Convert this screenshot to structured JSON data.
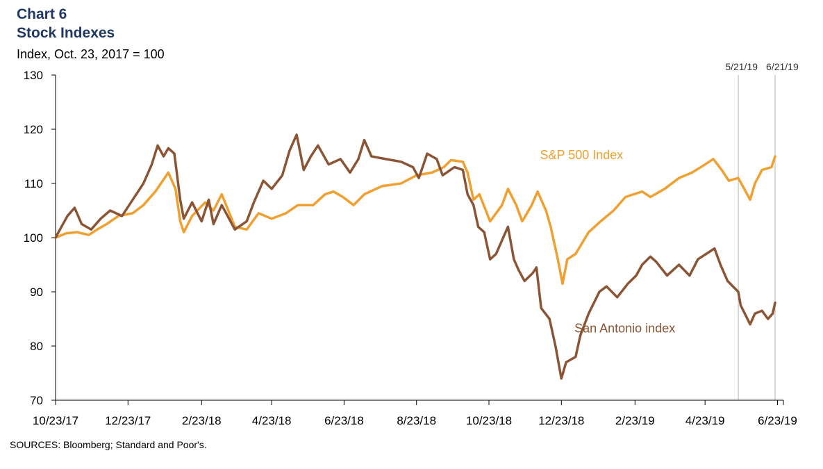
{
  "header": {
    "chart_label": "Chart 6",
    "title": "Stock Indexes",
    "unit_label": "Index, Oct. 23, 2017 = 100"
  },
  "footer": {
    "source": "SOURCES:  Bloomberg; Standard and Poor's."
  },
  "chart_data": {
    "type": "line",
    "title": "Stock Indexes",
    "ylabel": "Index, Oct. 23, 2017 = 100",
    "xlabel": "",
    "xlim": [
      "2017-10-23",
      "2019-06-28"
    ],
    "ylim": [
      70,
      130
    ],
    "y_ticks": [
      70,
      80,
      90,
      100,
      110,
      120,
      130
    ],
    "x_ticks": [
      {
        "date": "2017-10-23",
        "label": "10/23/17"
      },
      {
        "date": "2017-12-23",
        "label": "12/23/17"
      },
      {
        "date": "2018-02-23",
        "label": "2/23/18"
      },
      {
        "date": "2018-04-23",
        "label": "4/23/18"
      },
      {
        "date": "2018-06-23",
        "label": "6/23/18"
      },
      {
        "date": "2018-08-23",
        "label": "8/23/18"
      },
      {
        "date": "2018-10-23",
        "label": "10/23/18"
      },
      {
        "date": "2018-12-23",
        "label": "12/23/18"
      },
      {
        "date": "2019-02-23",
        "label": "2/23/19"
      },
      {
        "date": "2019-04-23",
        "label": "4/23/19"
      },
      {
        "date": "2019-06-23",
        "label": "6/23/19"
      }
    ],
    "grid": false,
    "reference_lines": [
      {
        "date": "2019-05-21",
        "label": "5/21/19",
        "color": "#b3b3b3"
      },
      {
        "date": "2019-06-21",
        "label": "6/21/19",
        "color": "#b3b3b3"
      }
    ],
    "series": [
      {
        "name": "S&P 500 Index",
        "color": "#f0a030",
        "points": [
          [
            "2017-10-23",
            100
          ],
          [
            "2017-11-01",
            100.8
          ],
          [
            "2017-11-10",
            101
          ],
          [
            "2017-11-20",
            100.5
          ],
          [
            "2017-11-27",
            101.5
          ],
          [
            "2017-12-05",
            102.5
          ],
          [
            "2017-12-15",
            104
          ],
          [
            "2017-12-27",
            104.5
          ],
          [
            "2018-01-05",
            106
          ],
          [
            "2018-01-15",
            108.5
          ],
          [
            "2018-01-26",
            112
          ],
          [
            "2018-02-01",
            109
          ],
          [
            "2018-02-05",
            103
          ],
          [
            "2018-02-08",
            101
          ],
          [
            "2018-02-15",
            104
          ],
          [
            "2018-02-26",
            106.5
          ],
          [
            "2018-03-05",
            105
          ],
          [
            "2018-03-12",
            108
          ],
          [
            "2018-03-23",
            102
          ],
          [
            "2018-04-02",
            101.5
          ],
          [
            "2018-04-12",
            104.5
          ],
          [
            "2018-04-23",
            103.5
          ],
          [
            "2018-05-05",
            104.5
          ],
          [
            "2018-05-15",
            106
          ],
          [
            "2018-05-28",
            106
          ],
          [
            "2018-06-07",
            108
          ],
          [
            "2018-06-14",
            108.5
          ],
          [
            "2018-06-22",
            107.5
          ],
          [
            "2018-07-01",
            106
          ],
          [
            "2018-07-10",
            108
          ],
          [
            "2018-07-25",
            109.5
          ],
          [
            "2018-08-10",
            110
          ],
          [
            "2018-08-23",
            111.5
          ],
          [
            "2018-09-05",
            112
          ],
          [
            "2018-09-15",
            113
          ],
          [
            "2018-09-21",
            114.3
          ],
          [
            "2018-10-01",
            114
          ],
          [
            "2018-10-05",
            112
          ],
          [
            "2018-10-10",
            107
          ],
          [
            "2018-10-15",
            108
          ],
          [
            "2018-10-24",
            103
          ],
          [
            "2018-11-03",
            106
          ],
          [
            "2018-11-08",
            109
          ],
          [
            "2018-11-15",
            106
          ],
          [
            "2018-11-20",
            103
          ],
          [
            "2018-11-28",
            106
          ],
          [
            "2018-12-03",
            108.5
          ],
          [
            "2018-12-10",
            105
          ],
          [
            "2018-12-14",
            102
          ],
          [
            "2018-12-20",
            96
          ],
          [
            "2018-12-24",
            91.5
          ],
          [
            "2018-12-28",
            96
          ],
          [
            "2019-01-04",
            97
          ],
          [
            "2019-01-15",
            101
          ],
          [
            "2019-01-25",
            103
          ],
          [
            "2019-02-05",
            105
          ],
          [
            "2019-02-15",
            107.5
          ],
          [
            "2019-03-01",
            108.5
          ],
          [
            "2019-03-08",
            107.5
          ],
          [
            "2019-03-20",
            109
          ],
          [
            "2019-04-01",
            111
          ],
          [
            "2019-04-12",
            112
          ],
          [
            "2019-04-23",
            113.5
          ],
          [
            "2019-04-30",
            114.5
          ],
          [
            "2019-05-07",
            112.5
          ],
          [
            "2019-05-13",
            110.5
          ],
          [
            "2019-05-21",
            111
          ],
          [
            "2019-05-31",
            107
          ],
          [
            "2019-06-04",
            110
          ],
          [
            "2019-06-10",
            112.5
          ],
          [
            "2019-06-18",
            113
          ],
          [
            "2019-06-21",
            115
          ]
        ]
      },
      {
        "name": "San Antonio index",
        "color": "#8b5535",
        "points": [
          [
            "2017-10-23",
            100
          ],
          [
            "2017-10-28",
            102
          ],
          [
            "2017-11-02",
            104
          ],
          [
            "2017-11-08",
            105.5
          ],
          [
            "2017-11-14",
            102.5
          ],
          [
            "2017-11-22",
            101.5
          ],
          [
            "2017-11-30",
            103.5
          ],
          [
            "2017-12-08",
            105
          ],
          [
            "2017-12-18",
            104
          ],
          [
            "2017-12-27",
            107
          ],
          [
            "2018-01-05",
            110
          ],
          [
            "2018-01-12",
            113.5
          ],
          [
            "2018-01-17",
            117
          ],
          [
            "2018-01-22",
            115
          ],
          [
            "2018-01-26",
            116.5
          ],
          [
            "2018-01-31",
            115.5
          ],
          [
            "2018-02-05",
            107
          ],
          [
            "2018-02-08",
            103.5
          ],
          [
            "2018-02-15",
            106.5
          ],
          [
            "2018-02-23",
            103
          ],
          [
            "2018-03-01",
            107
          ],
          [
            "2018-03-05",
            102.5
          ],
          [
            "2018-03-12",
            106
          ],
          [
            "2018-03-23",
            101.5
          ],
          [
            "2018-04-02",
            103
          ],
          [
            "2018-04-08",
            106.5
          ],
          [
            "2018-04-16",
            110.5
          ],
          [
            "2018-04-23",
            109
          ],
          [
            "2018-05-02",
            111.5
          ],
          [
            "2018-05-08",
            116
          ],
          [
            "2018-05-14",
            119
          ],
          [
            "2018-05-20",
            112.5
          ],
          [
            "2018-05-26",
            115
          ],
          [
            "2018-06-01",
            117
          ],
          [
            "2018-06-10",
            113.5
          ],
          [
            "2018-06-20",
            114.5
          ],
          [
            "2018-06-28",
            112
          ],
          [
            "2018-07-05",
            114.5
          ],
          [
            "2018-07-10",
            118
          ],
          [
            "2018-07-16",
            115
          ],
          [
            "2018-07-28",
            114.5
          ],
          [
            "2018-08-10",
            114
          ],
          [
            "2018-08-20",
            113
          ],
          [
            "2018-08-25",
            111
          ],
          [
            "2018-09-01",
            115.5
          ],
          [
            "2018-09-09",
            114.5
          ],
          [
            "2018-09-14",
            111.5
          ],
          [
            "2018-09-24",
            113
          ],
          [
            "2018-10-01",
            112.5
          ],
          [
            "2018-10-05",
            108
          ],
          [
            "2018-10-10",
            106
          ],
          [
            "2018-10-14",
            102
          ],
          [
            "2018-10-19",
            101
          ],
          [
            "2018-10-24",
            96
          ],
          [
            "2018-10-29",
            97
          ],
          [
            "2018-11-04",
            100
          ],
          [
            "2018-11-08",
            102
          ],
          [
            "2018-11-13",
            96
          ],
          [
            "2018-11-17",
            94
          ],
          [
            "2018-11-22",
            92
          ],
          [
            "2018-11-29",
            93.5
          ],
          [
            "2018-12-02",
            94.5
          ],
          [
            "2018-12-06",
            87
          ],
          [
            "2018-12-13",
            85
          ],
          [
            "2018-12-18",
            80
          ],
          [
            "2018-12-23",
            74
          ],
          [
            "2018-12-27",
            77
          ],
          [
            "2019-01-04",
            78
          ],
          [
            "2019-01-08",
            82
          ],
          [
            "2019-01-15",
            86
          ],
          [
            "2019-01-24",
            90
          ],
          [
            "2019-01-30",
            91
          ],
          [
            "2019-02-08",
            89
          ],
          [
            "2019-02-17",
            91.5
          ],
          [
            "2019-02-24",
            93
          ],
          [
            "2019-03-01",
            95
          ],
          [
            "2019-03-08",
            96.5
          ],
          [
            "2019-03-13",
            95.5
          ],
          [
            "2019-03-22",
            93
          ],
          [
            "2019-04-01",
            95
          ],
          [
            "2019-04-10",
            93
          ],
          [
            "2019-04-17",
            96
          ],
          [
            "2019-04-24",
            97
          ],
          [
            "2019-05-01",
            98
          ],
          [
            "2019-05-06",
            95
          ],
          [
            "2019-05-12",
            92
          ],
          [
            "2019-05-21",
            90
          ],
          [
            "2019-05-23",
            87.5
          ],
          [
            "2019-05-31",
            84
          ],
          [
            "2019-06-04",
            86
          ],
          [
            "2019-06-10",
            86.5
          ],
          [
            "2019-06-15",
            85
          ],
          [
            "2019-06-19",
            86
          ],
          [
            "2019-06-21",
            88
          ]
        ]
      }
    ]
  }
}
